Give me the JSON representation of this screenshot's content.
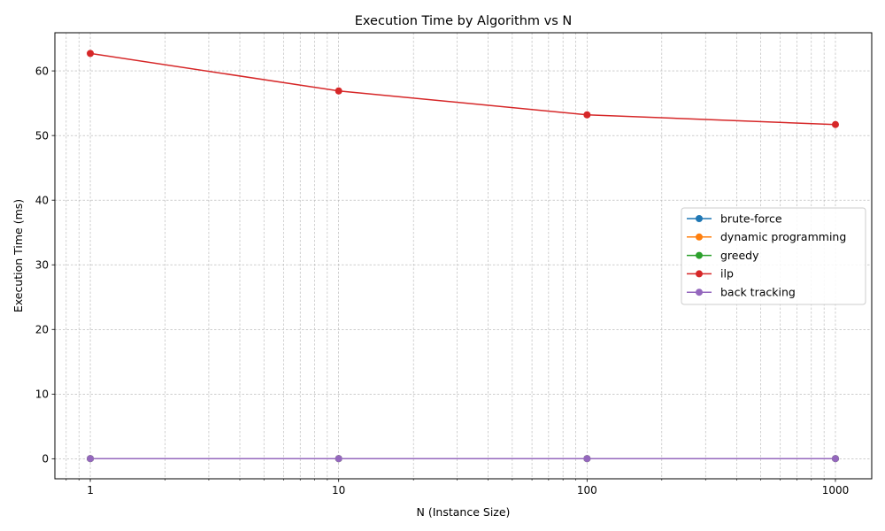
{
  "chart_data": {
    "type": "line",
    "title": "Execution Time by Algorithm vs N",
    "xlabel": "N (Instance Size)",
    "ylabel": "Execution Time (ms)",
    "x_scale": "log",
    "x": [
      1,
      10,
      100,
      1000
    ],
    "x_tick_labels": [
      "1",
      "10",
      "100",
      "1000"
    ],
    "xlim": [
      0.72,
      1400
    ],
    "y_ticks": [
      0,
      10,
      20,
      30,
      40,
      50,
      60
    ],
    "ylim": [
      -3.1,
      65.9
    ],
    "grid": true,
    "legend_position": "center-right",
    "series": [
      {
        "name": "brute-force",
        "color": "#1f77b4",
        "values": [
          0.02,
          0.02,
          0.02,
          0.02
        ]
      },
      {
        "name": "dynamic programming",
        "color": "#ff7f0e",
        "values": [
          0.02,
          0.02,
          0.02,
          0.02
        ]
      },
      {
        "name": "greedy",
        "color": "#2ca02c",
        "values": [
          0.02,
          0.02,
          0.02,
          0.02
        ]
      },
      {
        "name": "ilp",
        "color": "#d62728",
        "values": [
          62.7,
          56.9,
          53.2,
          51.7
        ]
      },
      {
        "name": "back tracking",
        "color": "#9467bd",
        "values": [
          0.02,
          0.02,
          0.02,
          0.02
        ]
      }
    ]
  }
}
